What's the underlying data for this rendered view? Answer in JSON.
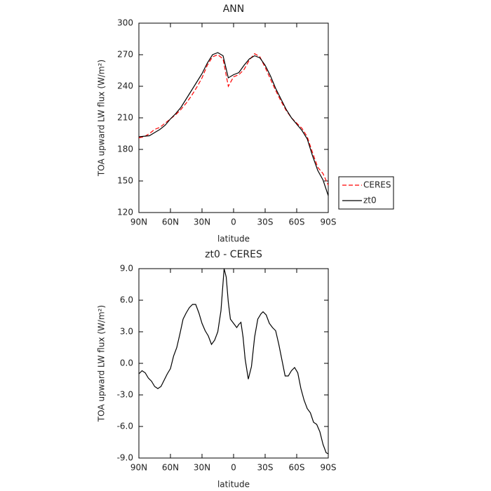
{
  "chart_data": [
    {
      "type": "line",
      "title": "ANN",
      "xlabel": "latitude",
      "ylabel": "TOA upward LW flux (W/m²)",
      "x": [
        90,
        85,
        80,
        75,
        70,
        65,
        60,
        55,
        50,
        45,
        40,
        35,
        30,
        25,
        20,
        15,
        10,
        5,
        0,
        -5,
        -10,
        -15,
        -20,
        -25,
        -30,
        -35,
        -40,
        -45,
        -50,
        -55,
        -60,
        -65,
        -70,
        -75,
        -80,
        -85,
        -90
      ],
      "series": [
        {
          "name": "CERES",
          "color": "#ff0000",
          "dash": true,
          "values": [
            191,
            192,
            195,
            199,
            201,
            205,
            209,
            213,
            218,
            224,
            231,
            239,
            248,
            260,
            268,
            270,
            266,
            240,
            249,
            251,
            256,
            265,
            271,
            268,
            258,
            247,
            236,
            226,
            217,
            210,
            205,
            200,
            192,
            177,
            163,
            157,
            146
          ]
        },
        {
          "name": "zt0",
          "color": "#000000",
          "dash": false,
          "values": [
            192,
            192.5,
            193,
            196,
            199,
            203,
            209,
            214,
            220,
            228,
            236,
            244,
            252,
            262,
            270,
            272,
            269,
            248,
            251,
            253,
            260,
            266,
            269,
            267,
            260,
            250,
            238,
            228,
            218,
            210,
            204,
            198,
            190,
            174,
            160,
            151,
            136
          ]
        }
      ],
      "xlim": [
        90,
        -90
      ],
      "xticks": [
        {
          "value": 90,
          "label": "90N"
        },
        {
          "value": 60,
          "label": "60N"
        },
        {
          "value": 30,
          "label": "30N"
        },
        0,
        {
          "value": -30,
          "label": "30S"
        },
        {
          "value": -60,
          "label": "60S"
        },
        {
          "value": -90,
          "label": "90S"
        }
      ],
      "ylim": [
        120,
        300
      ],
      "yticks": [
        120,
        150,
        180,
        210,
        240,
        270,
        300
      ],
      "legend": "right"
    },
    {
      "type": "line",
      "title": "zt0 - CERES",
      "xlabel": "latitude",
      "ylabel": "TOA upward LW flux (W/m²)",
      "x": [
        90,
        87,
        84,
        81,
        78,
        75,
        72,
        69,
        66,
        63,
        60,
        57,
        54,
        51,
        48,
        45,
        42,
        39,
        36,
        33,
        30,
        27,
        24,
        21,
        18,
        15,
        12,
        9,
        7,
        5,
        3,
        0,
        -3,
        -5,
        -7,
        -9,
        -11,
        -14,
        -17,
        -20,
        -23,
        -26,
        -28,
        -31,
        -34,
        -37,
        -40,
        -43,
        -46,
        -49,
        -52,
        -55,
        -58,
        -61,
        -64,
        -67,
        -70,
        -73,
        -76,
        -79,
        -82,
        -85,
        -88,
        -90
      ],
      "series": [
        {
          "color": "#000000",
          "dash": false,
          "values": [
            -1.0,
            -0.7,
            -0.9,
            -1.4,
            -1.7,
            -2.2,
            -2.4,
            -2.2,
            -1.6,
            -1.0,
            -0.5,
            0.7,
            1.5,
            2.8,
            4.2,
            4.8,
            5.3,
            5.6,
            5.6,
            4.8,
            3.8,
            3.1,
            2.6,
            1.8,
            2.2,
            3.0,
            5.0,
            9.0,
            8.2,
            5.8,
            4.2,
            3.8,
            3.4,
            3.7,
            3.9,
            2.5,
            0.4,
            -1.5,
            -0.3,
            2.5,
            4.2,
            4.7,
            4.9,
            4.6,
            3.8,
            3.4,
            3.1,
            1.8,
            0.3,
            -1.2,
            -1.2,
            -0.7,
            -0.4,
            -0.9,
            -2.4,
            -3.5,
            -4.3,
            -4.7,
            -5.6,
            -5.8,
            -6.5,
            -7.7,
            -8.5,
            -8.6
          ]
        }
      ],
      "xlim": [
        90,
        -90
      ],
      "xticks": [
        {
          "value": 90,
          "label": "90N"
        },
        {
          "value": 60,
          "label": "60N"
        },
        {
          "value": 30,
          "label": "30N"
        },
        0,
        {
          "value": -30,
          "label": "30S"
        },
        {
          "value": -60,
          "label": "60S"
        },
        {
          "value": -90,
          "label": "90S"
        }
      ],
      "ylim": [
        -9,
        9
      ],
      "yticks": [
        {
          "value": -9,
          "label": "-9.0"
        },
        {
          "value": -6,
          "label": "-6.0"
        },
        {
          "value": -3,
          "label": "-3.0"
        },
        {
          "value": 0,
          "label": "0.0"
        },
        {
          "value": 3,
          "label": "3.0"
        },
        {
          "value": 6,
          "label": "6.0"
        },
        {
          "value": 9,
          "label": "9.0"
        }
      ]
    }
  ]
}
